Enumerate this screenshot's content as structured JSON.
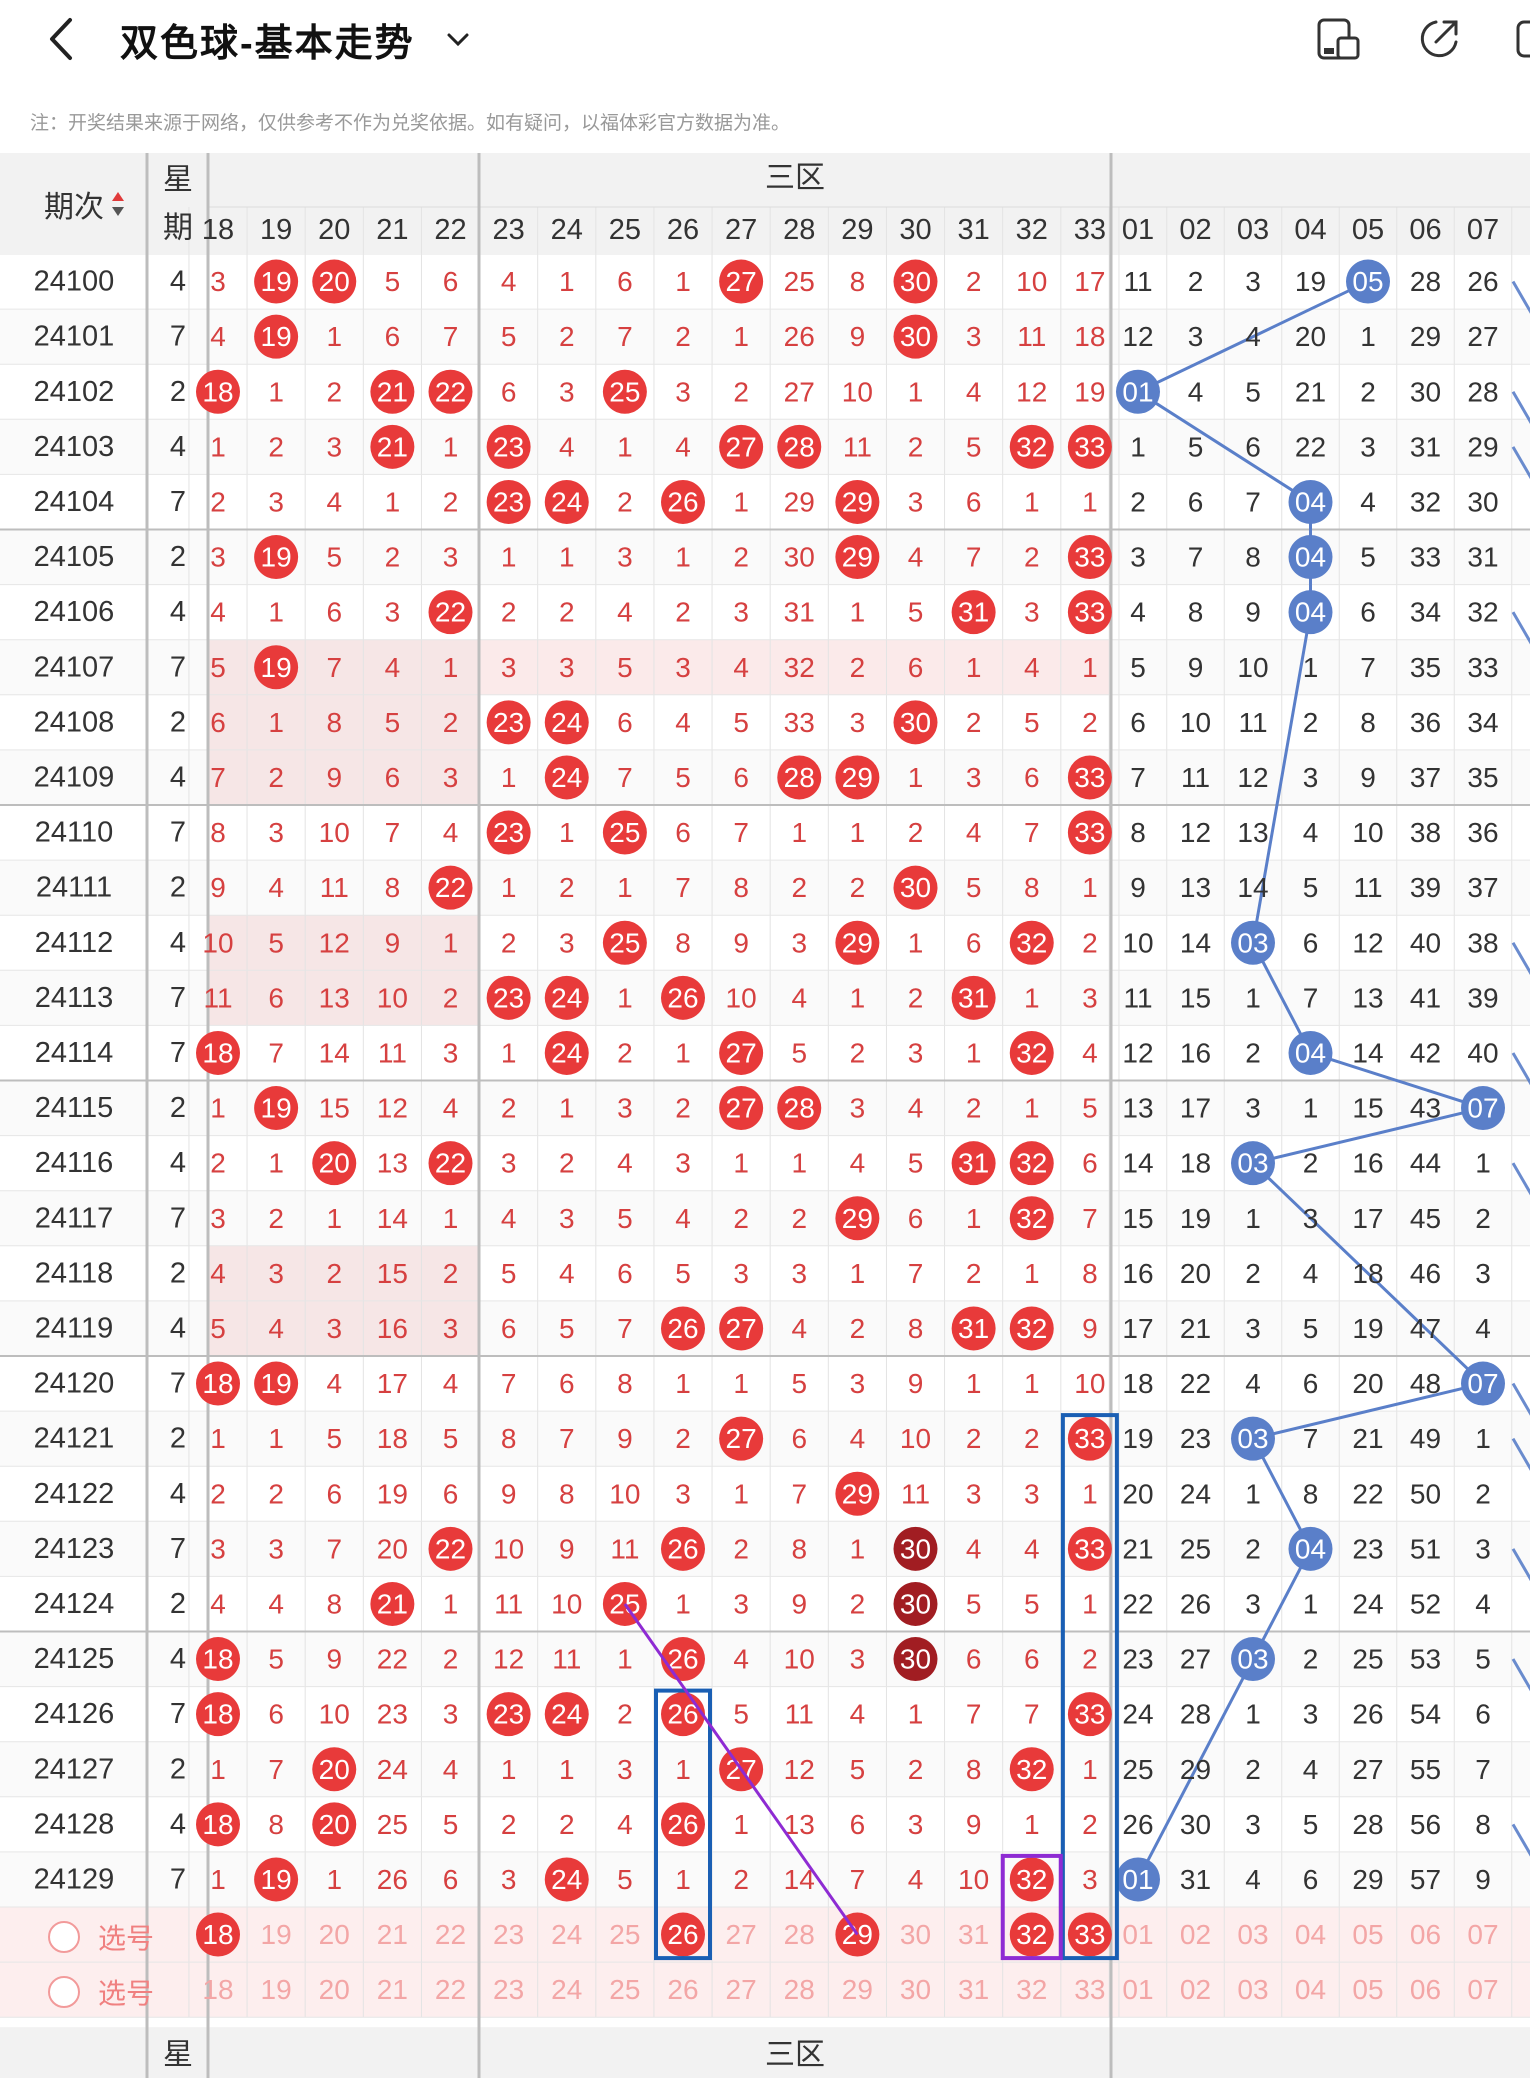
{
  "header": {
    "title": "双色球-基本走势",
    "icons": [
      "back-chevron-icon",
      "dropdown-chevron-icon",
      "layout-toggle-icon",
      "share-icon",
      "more-icon"
    ]
  },
  "disclaimer": "注：开奖结果来源于网络，仅供参考不作为兑奖依据。如有疑问，以福体彩官方数据为准。",
  "table": {
    "period_header": "期次",
    "weekday_header_top": "星",
    "weekday_header_bottom": "期",
    "zone_label": "三区",
    "red_columns": [
      "18",
      "19",
      "20",
      "21",
      "22",
      "23",
      "24",
      "25",
      "26",
      "27",
      "28",
      "29",
      "30",
      "31",
      "32",
      "33"
    ],
    "blue_columns": [
      "01",
      "02",
      "03",
      "04",
      "05",
      "06",
      "07"
    ],
    "rows": [
      {
        "period": "24100",
        "weekday": "4",
        "red": [
          "3",
          "19",
          "20",
          "5",
          "6",
          "4",
          "1",
          "6",
          "1",
          "27",
          "25",
          "8",
          "30",
          "2",
          "10",
          "17"
        ],
        "blue": [
          "11",
          "2",
          "3",
          "19",
          "05",
          "28",
          "26"
        ]
      },
      {
        "period": "24101",
        "weekday": "7",
        "red": [
          "4",
          "19",
          "1",
          "6",
          "7",
          "5",
          "2",
          "7",
          "2",
          "1",
          "26",
          "9",
          "30",
          "3",
          "11",
          "18"
        ],
        "blue": [
          "12",
          "3",
          "4",
          "20",
          "1",
          "29",
          "27"
        ]
      },
      {
        "period": "24102",
        "weekday": "2",
        "red": [
          "18",
          "1",
          "2",
          "21",
          "22",
          "6",
          "3",
          "25",
          "3",
          "2",
          "27",
          "10",
          "1",
          "4",
          "12",
          "19"
        ],
        "blue": [
          "01",
          "4",
          "5",
          "21",
          "2",
          "30",
          "28"
        ]
      },
      {
        "period": "24103",
        "weekday": "4",
        "red": [
          "1",
          "2",
          "3",
          "21",
          "1",
          "23",
          "4",
          "1",
          "4",
          "27",
          "28",
          "11",
          "2",
          "5",
          "32",
          "33"
        ],
        "blue": [
          "1",
          "5",
          "6",
          "22",
          "3",
          "31",
          "29"
        ]
      },
      {
        "period": "24104",
        "weekday": "7",
        "red": [
          "2",
          "3",
          "4",
          "1",
          "2",
          "23",
          "24",
          "2",
          "26",
          "1",
          "29",
          "29",
          "3",
          "6",
          "1",
          "1"
        ],
        "blue": [
          "2",
          "6",
          "7",
          "04",
          "4",
          "32",
          "30"
        ]
      },
      {
        "period": "24105",
        "weekday": "2",
        "red": [
          "3",
          "19",
          "5",
          "2",
          "3",
          "1",
          "1",
          "3",
          "1",
          "2",
          "30",
          "29",
          "4",
          "7",
          "2",
          "33"
        ],
        "blue": [
          "3",
          "7",
          "8",
          "04",
          "5",
          "33",
          "31"
        ]
      },
      {
        "period": "24106",
        "weekday": "4",
        "red": [
          "4",
          "1",
          "6",
          "3",
          "22",
          "2",
          "2",
          "4",
          "2",
          "3",
          "31",
          "1",
          "5",
          "31",
          "3",
          "33"
        ],
        "blue": [
          "4",
          "8",
          "9",
          "04",
          "6",
          "34",
          "32"
        ]
      },
      {
        "period": "24107",
        "weekday": "7",
        "red": [
          "5",
          "19",
          "7",
          "4",
          "1",
          "3",
          "3",
          "5",
          "3",
          "4",
          "32",
          "2",
          "6",
          "1",
          "4",
          "1"
        ],
        "blue": [
          "5",
          "9",
          "10",
          "1",
          "7",
          "35",
          "33"
        ]
      },
      {
        "period": "24108",
        "weekday": "2",
        "red": [
          "6",
          "1",
          "8",
          "5",
          "2",
          "23",
          "24",
          "6",
          "4",
          "5",
          "33",
          "3",
          "30",
          "2",
          "5",
          "2"
        ],
        "blue": [
          "6",
          "10",
          "11",
          "2",
          "8",
          "36",
          "34"
        ]
      },
      {
        "period": "24109",
        "weekday": "4",
        "red": [
          "7",
          "2",
          "9",
          "6",
          "3",
          "1",
          "24",
          "7",
          "5",
          "6",
          "28",
          "29",
          "1",
          "3",
          "6",
          "33"
        ],
        "blue": [
          "7",
          "11",
          "12",
          "3",
          "9",
          "37",
          "35"
        ]
      },
      {
        "period": "24110",
        "weekday": "7",
        "red": [
          "8",
          "3",
          "10",
          "7",
          "4",
          "23",
          "1",
          "25",
          "6",
          "7",
          "1",
          "1",
          "2",
          "4",
          "7",
          "33"
        ],
        "blue": [
          "8",
          "12",
          "13",
          "4",
          "10",
          "38",
          "36"
        ]
      },
      {
        "period": "24111",
        "weekday": "2",
        "red": [
          "9",
          "4",
          "11",
          "8",
          "22",
          "1",
          "2",
          "1",
          "7",
          "8",
          "2",
          "2",
          "30",
          "5",
          "8",
          "1"
        ],
        "blue": [
          "9",
          "13",
          "14",
          "5",
          "11",
          "39",
          "37"
        ]
      },
      {
        "period": "24112",
        "weekday": "4",
        "red": [
          "10",
          "5",
          "12",
          "9",
          "1",
          "2",
          "3",
          "25",
          "8",
          "9",
          "3",
          "29",
          "1",
          "6",
          "32",
          "2"
        ],
        "blue": [
          "10",
          "14",
          "03",
          "6",
          "12",
          "40",
          "38"
        ]
      },
      {
        "period": "24113",
        "weekday": "7",
        "red": [
          "11",
          "6",
          "13",
          "10",
          "2",
          "23",
          "24",
          "1",
          "26",
          "10",
          "4",
          "1",
          "2",
          "31",
          "1",
          "3"
        ],
        "blue": [
          "11",
          "15",
          "1",
          "7",
          "13",
          "41",
          "39"
        ]
      },
      {
        "period": "24114",
        "weekday": "7",
        "red": [
          "18",
          "7",
          "14",
          "11",
          "3",
          "1",
          "24",
          "2",
          "1",
          "27",
          "5",
          "2",
          "3",
          "1",
          "32",
          "4"
        ],
        "blue": [
          "12",
          "16",
          "2",
          "04",
          "14",
          "42",
          "40"
        ]
      },
      {
        "period": "24115",
        "weekday": "2",
        "red": [
          "1",
          "19",
          "15",
          "12",
          "4",
          "2",
          "1",
          "3",
          "2",
          "27",
          "28",
          "3",
          "4",
          "2",
          "1",
          "5"
        ],
        "blue": [
          "13",
          "17",
          "3",
          "1",
          "15",
          "43",
          "07"
        ]
      },
      {
        "period": "24116",
        "weekday": "4",
        "red": [
          "2",
          "1",
          "20",
          "13",
          "22",
          "3",
          "2",
          "4",
          "3",
          "1",
          "1",
          "4",
          "5",
          "31",
          "32",
          "6"
        ],
        "blue": [
          "14",
          "18",
          "03",
          "2",
          "16",
          "44",
          "1"
        ]
      },
      {
        "period": "24117",
        "weekday": "7",
        "red": [
          "3",
          "2",
          "1",
          "14",
          "1",
          "4",
          "3",
          "5",
          "4",
          "2",
          "2",
          "29",
          "6",
          "1",
          "32",
          "7"
        ],
        "blue": [
          "15",
          "19",
          "1",
          "3",
          "17",
          "45",
          "2"
        ]
      },
      {
        "period": "24118",
        "weekday": "2",
        "red": [
          "4",
          "3",
          "2",
          "15",
          "2",
          "5",
          "4",
          "6",
          "5",
          "3",
          "3",
          "1",
          "7",
          "2",
          "1",
          "8"
        ],
        "blue": [
          "16",
          "20",
          "2",
          "4",
          "18",
          "46",
          "3"
        ]
      },
      {
        "period": "24119",
        "weekday": "4",
        "red": [
          "5",
          "4",
          "3",
          "16",
          "3",
          "6",
          "5",
          "7",
          "26",
          "27",
          "4",
          "2",
          "8",
          "31",
          "32",
          "9"
        ],
        "blue": [
          "17",
          "21",
          "3",
          "5",
          "19",
          "47",
          "4"
        ]
      },
      {
        "period": "24120",
        "weekday": "7",
        "red": [
          "18",
          "19",
          "4",
          "17",
          "4",
          "7",
          "6",
          "8",
          "1",
          "1",
          "5",
          "3",
          "9",
          "1",
          "1",
          "10"
        ],
        "blue": [
          "18",
          "22",
          "4",
          "6",
          "20",
          "48",
          "07"
        ]
      },
      {
        "period": "24121",
        "weekday": "2",
        "red": [
          "1",
          "1",
          "5",
          "18",
          "5",
          "8",
          "7",
          "9",
          "2",
          "27",
          "6",
          "4",
          "10",
          "2",
          "2",
          "33"
        ],
        "blue": [
          "19",
          "23",
          "03",
          "7",
          "21",
          "49",
          "1"
        ]
      },
      {
        "period": "24122",
        "weekday": "4",
        "red": [
          "2",
          "2",
          "6",
          "19",
          "6",
          "9",
          "8",
          "10",
          "3",
          "1",
          "7",
          "29",
          "11",
          "3",
          "3",
          "1"
        ],
        "blue": [
          "20",
          "24",
          "1",
          "8",
          "22",
          "50",
          "2"
        ]
      },
      {
        "period": "24123",
        "weekday": "7",
        "red": [
          "3",
          "3",
          "7",
          "20",
          "22",
          "10",
          "9",
          "11",
          "26",
          "2",
          "8",
          "1",
          "30",
          "4",
          "4",
          "33"
        ],
        "blue": [
          "21",
          "25",
          "2",
          "04",
          "23",
          "51",
          "3"
        ]
      },
      {
        "period": "24124",
        "weekday": "2",
        "red": [
          "4",
          "4",
          "8",
          "21",
          "1",
          "11",
          "10",
          "25",
          "1",
          "3",
          "9",
          "2",
          "30",
          "5",
          "5",
          "1"
        ],
        "blue": [
          "22",
          "26",
          "3",
          "1",
          "24",
          "52",
          "4"
        ]
      },
      {
        "period": "24125",
        "weekday": "4",
        "red": [
          "18",
          "5",
          "9",
          "22",
          "2",
          "12",
          "11",
          "1",
          "26",
          "4",
          "10",
          "3",
          "30",
          "6",
          "6",
          "2"
        ],
        "blue": [
          "23",
          "27",
          "03",
          "2",
          "25",
          "53",
          "5"
        ]
      },
      {
        "period": "24126",
        "weekday": "7",
        "red": [
          "18",
          "6",
          "10",
          "23",
          "3",
          "23",
          "24",
          "2",
          "26",
          "5",
          "11",
          "4",
          "1",
          "7",
          "7",
          "33"
        ],
        "blue": [
          "24",
          "28",
          "1",
          "3",
          "26",
          "54",
          "6"
        ]
      },
      {
        "period": "24127",
        "weekday": "2",
        "red": [
          "1",
          "7",
          "20",
          "24",
          "4",
          "1",
          "1",
          "3",
          "1",
          "27",
          "12",
          "5",
          "2",
          "8",
          "32",
          "1"
        ],
        "blue": [
          "25",
          "29",
          "2",
          "4",
          "27",
          "55",
          "7"
        ]
      },
      {
        "period": "24128",
        "weekday": "4",
        "red": [
          "18",
          "8",
          "20",
          "25",
          "5",
          "2",
          "2",
          "4",
          "26",
          "1",
          "13",
          "6",
          "3",
          "9",
          "1",
          "2"
        ],
        "blue": [
          "26",
          "30",
          "3",
          "5",
          "28",
          "56",
          "8"
        ]
      },
      {
        "period": "24129",
        "weekday": "7",
        "red": [
          "1",
          "19",
          "1",
          "26",
          "6",
          "3",
          "24",
          "5",
          "1",
          "2",
          "14",
          "7",
          "4",
          "10",
          "32",
          "3"
        ],
        "blue": [
          "01",
          "31",
          "4",
          "6",
          "29",
          "57",
          "9"
        ]
      }
    ],
    "select_rows": [
      {
        "label": "选号",
        "picked_red": [
          "18",
          "26",
          "29",
          "32",
          "33"
        ],
        "picked_blue": []
      },
      {
        "label": "选号",
        "picked_red": [],
        "picked_blue": []
      }
    ],
    "footer_header_top": "星",
    "footer_header_bottom": "期",
    "footer_dash": "-"
  },
  "colors": {
    "red_ball": "#e83a3a",
    "dark_red_ball": "#a11d22",
    "blue_ball": "#5a7fc9",
    "red_text": "#d64040",
    "header_bg": "#f2f2f2",
    "highlight_box": "#1a5fb4",
    "purple_box": "#8e2bd3"
  }
}
